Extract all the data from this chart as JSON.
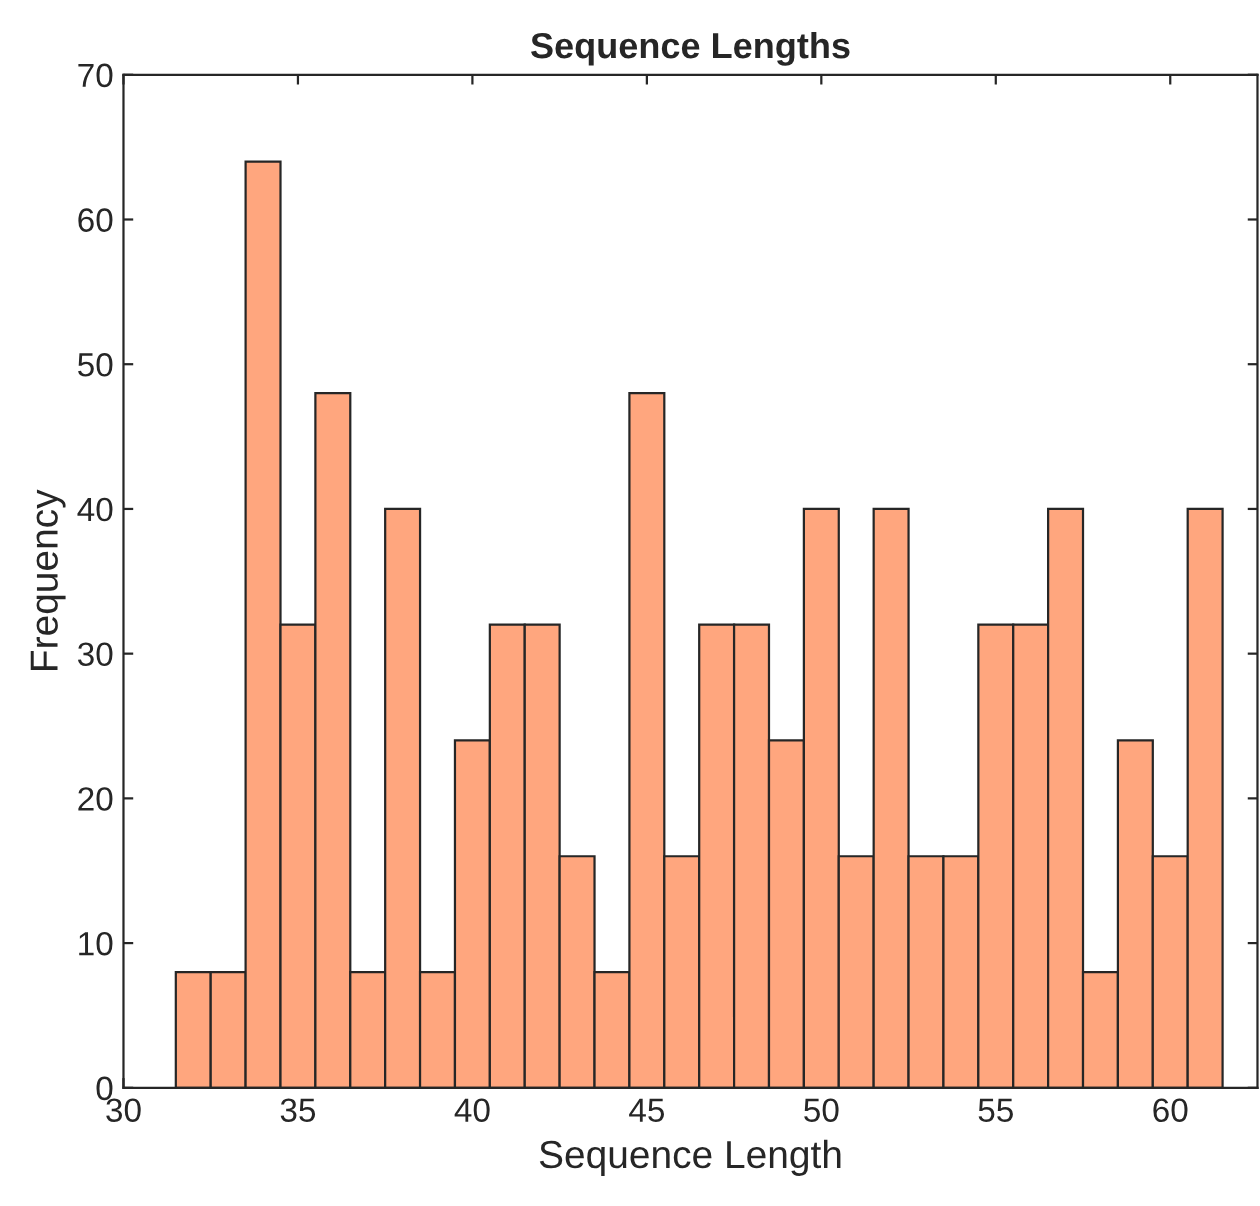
{
  "chart_data": {
    "type": "histogram",
    "title": "Sequence Lengths",
    "xlabel": "Sequence Length",
    "ylabel": "Frequency",
    "bins": [
      31.5,
      32.5,
      33.5,
      34.5,
      35.5,
      36.5,
      37.5,
      38.5,
      39.5,
      40.5,
      41.5,
      42.5,
      43.5,
      44.5,
      45.5,
      46.5,
      47.5,
      48.5,
      49.5,
      50.5,
      51.5,
      52.5,
      53.5,
      54.5,
      55.5,
      56.5,
      57.5,
      58.5,
      59.5,
      60.5,
      61.5
    ],
    "values": [
      8,
      8,
      64,
      32,
      48,
      8,
      40,
      8,
      24,
      32,
      32,
      16,
      8,
      48,
      16,
      32,
      32,
      24,
      40,
      16,
      40,
      16,
      16,
      32,
      32,
      40,
      8,
      24,
      16,
      40
    ],
    "color": "#ffa67e",
    "xlim": [
      30,
      62.5
    ],
    "xticks": [
      30,
      35,
      40,
      45,
      50,
      55,
      60
    ],
    "ylim": [
      0,
      70
    ],
    "yticks": [
      0,
      10,
      20,
      30,
      40,
      50,
      60,
      70
    ],
    "grid": false
  }
}
